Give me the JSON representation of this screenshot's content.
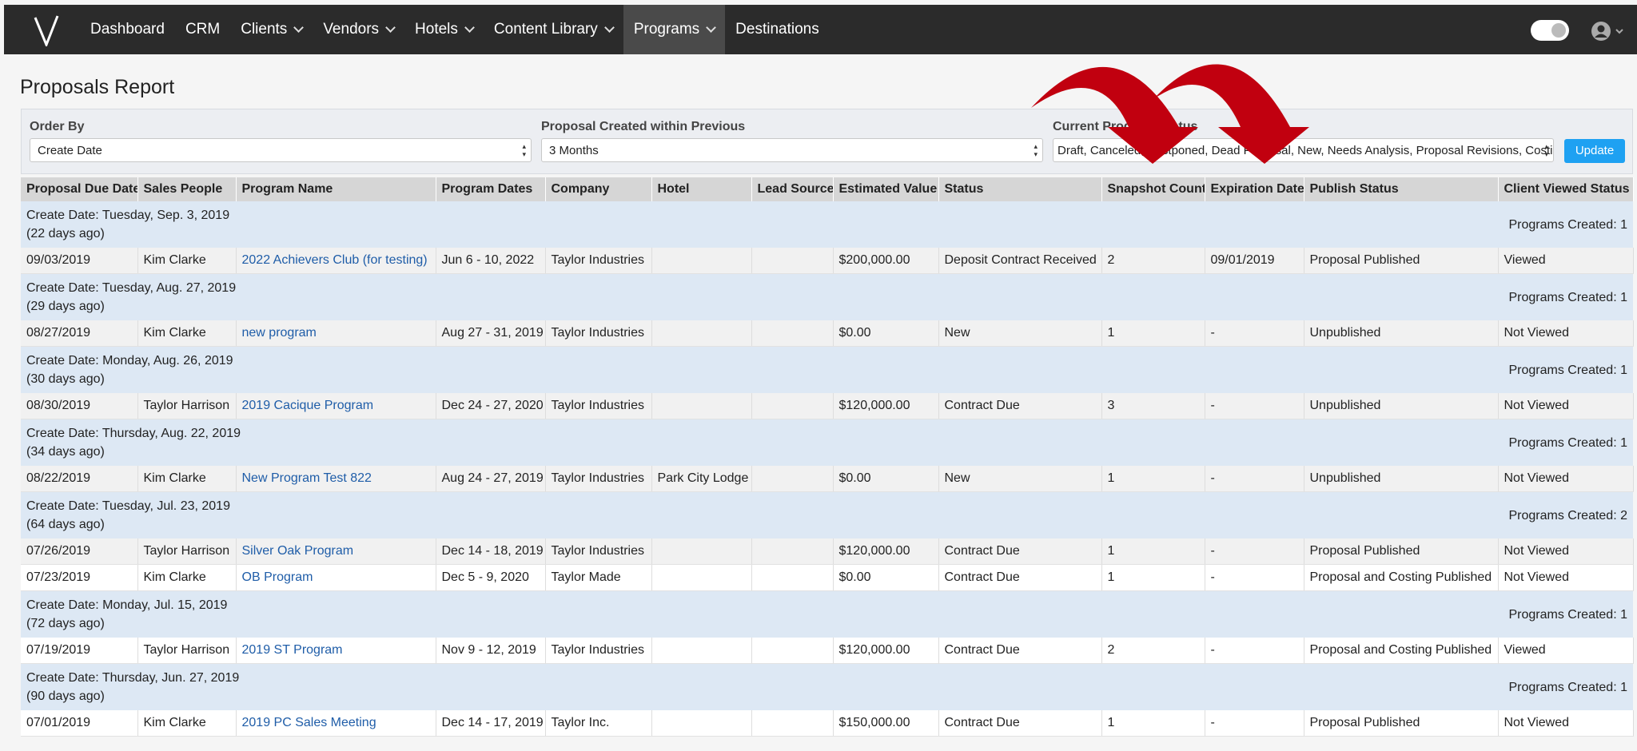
{
  "nav": {
    "items": [
      "Dashboard",
      "CRM",
      "Clients",
      "Vendors",
      "Hotels",
      "Content Library",
      "Programs",
      "Destinations"
    ]
  },
  "page": {
    "title": "Proposals Report"
  },
  "filters": {
    "order_by": {
      "label": "Order By",
      "value": "Create Date"
    },
    "created_within": {
      "label": "Proposal Created within Previous",
      "value": "3 Months"
    },
    "status": {
      "label": "Current Program Status",
      "value": "Draft, Canceled, Postponed, Dead Proposal, New, Needs Analysis, Proposal Revisions, Costing"
    },
    "button": "Update"
  },
  "table": {
    "headers": [
      "Proposal Due Date",
      "Sales People",
      "Program Name",
      "Program Dates",
      "Company",
      "Hotel",
      "Lead Source",
      "Estimated Value",
      "Status",
      "Snapshot Count",
      "Expiration Date",
      "Publish Status",
      "Client Viewed Status"
    ],
    "groups": [
      {
        "date": "Create Date: Tuesday, Sep. 3, 2019",
        "ago": "(22 days ago)",
        "count": "Programs Created: 1",
        "rows": [
          [
            "09/03/2019",
            "Kim Clarke",
            "2022 Achievers Club (for testing)",
            "Jun 6 - 10, 2022",
            "Taylor Industries",
            null,
            null,
            "$200,000.00",
            "Deposit Contract Received",
            "2",
            "09/01/2019",
            "Proposal Published",
            "Viewed"
          ]
        ]
      },
      {
        "date": "Create Date: Tuesday, Aug. 27, 2019",
        "ago": "(29 days ago)",
        "count": "Programs Created: 1",
        "rows": [
          [
            "08/27/2019",
            "Kim Clarke",
            "new program",
            "Aug 27 - 31, 2019",
            "Taylor Industries",
            null,
            null,
            "$0.00",
            "New",
            "1",
            "-",
            "Unpublished",
            "Not Viewed"
          ]
        ]
      },
      {
        "date": "Create Date: Monday, Aug. 26, 2019",
        "ago": "(30 days ago)",
        "count": "Programs Created: 1",
        "rows": [
          [
            "08/30/2019",
            "Taylor Harrison",
            "2019 Cacique Program",
            "Dec 24 - 27, 2020",
            "Taylor Industries",
            null,
            null,
            "$120,000.00",
            "Contract Due",
            "3",
            "-",
            "Unpublished",
            "Not Viewed"
          ]
        ]
      },
      {
        "date": "Create Date: Thursday, Aug. 22, 2019",
        "ago": "(34 days ago)",
        "count": "Programs Created: 1",
        "rows": [
          [
            "08/22/2019",
            "Kim Clarke",
            "New Program Test 822",
            "Aug 24 - 27, 2019",
            "Taylor Industries",
            "Park City Lodge",
            null,
            "$0.00",
            "New",
            "1",
            "-",
            "Unpublished",
            "Not Viewed"
          ]
        ]
      },
      {
        "date": "Create Date: Tuesday, Jul. 23, 2019",
        "ago": "(64 days ago)",
        "count": "Programs Created: 2",
        "rows": [
          [
            "07/26/2019",
            "Taylor Harrison",
            "Silver Oak Program",
            "Dec 14 - 18, 2019",
            "Taylor Industries",
            null,
            null,
            "$120,000.00",
            "Contract Due",
            "1",
            "-",
            "Proposal Published",
            "Not Viewed"
          ],
          [
            "07/23/2019",
            "Kim Clarke",
            "OB Program",
            "Dec 5 - 9, 2020",
            "Taylor Made",
            null,
            null,
            "$0.00",
            "Contract Due",
            "1",
            "-",
            "Proposal and Costing Published",
            "Not Viewed"
          ]
        ]
      },
      {
        "date": "Create Date: Monday, Jul. 15, 2019",
        "ago": "(72 days ago)",
        "count": "Programs Created: 1",
        "rows": [
          [
            "07/19/2019",
            "Taylor Harrison",
            "2019 ST Program",
            "Nov 9 - 12, 2019",
            "Taylor Industries",
            null,
            null,
            "$120,000.00",
            "Contract Due",
            "2",
            "-",
            "Proposal and Costing Published",
            "Viewed"
          ]
        ]
      },
      {
        "date": "Create Date: Thursday, Jun. 27, 2019",
        "ago": "(90 days ago)",
        "count": "Programs Created: 1",
        "rows": [
          [
            "07/01/2019",
            "Kim Clarke",
            "2019 PC Sales Meeting",
            "Dec 14 - 17, 2019",
            "Taylor Inc.",
            null,
            null,
            "$150,000.00",
            "Contract Due",
            "1",
            "-",
            "Proposal Published",
            "Not Viewed"
          ]
        ]
      }
    ]
  }
}
